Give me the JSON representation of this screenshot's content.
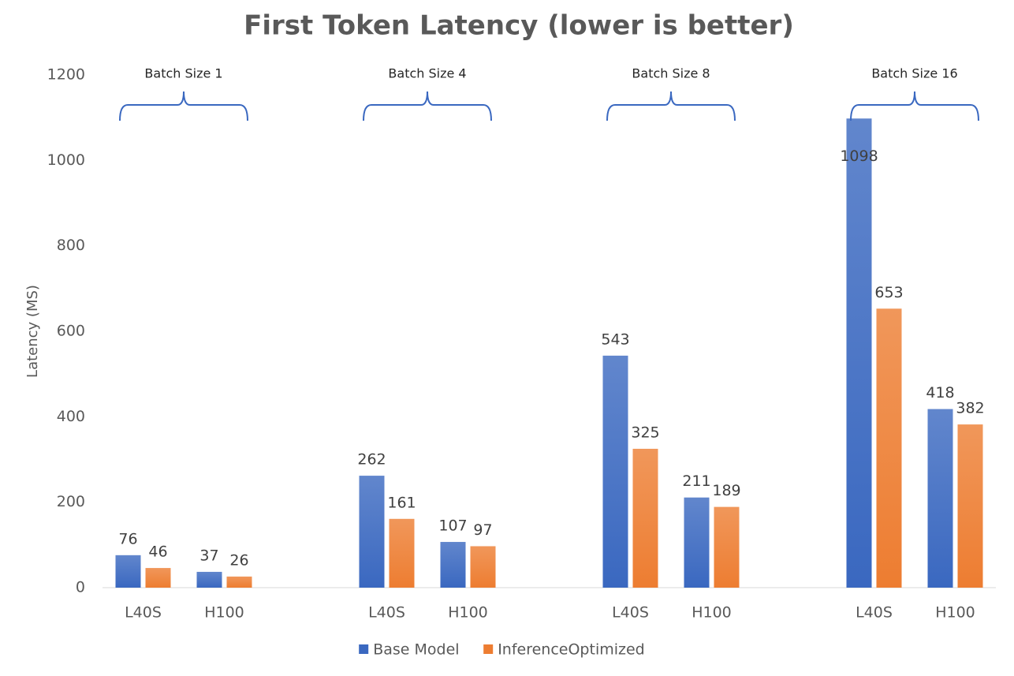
{
  "chart_data": {
    "type": "bar",
    "title": "First Token Latency (lower is better)",
    "y_label": "Latency (MS)",
    "categories": [
      "L40S",
      "H100",
      null,
      "L40S",
      "H100",
      null,
      "L40S",
      "H100",
      null,
      "L40S",
      "H100"
    ],
    "group_labels": [
      "Batch Size 1",
      "Batch Size 4",
      "Batch Size 8",
      "Batch Size 16"
    ],
    "series": [
      {
        "name": "Base Model",
        "color": "#3a68c0",
        "values": [
          76,
          37,
          null,
          262,
          107,
          null,
          543,
          211,
          null,
          1098,
          418
        ]
      },
      {
        "name": "InferenceOptimized",
        "color": "#ed7d31",
        "values": [
          46,
          26,
          null,
          161,
          97,
          null,
          325,
          189,
          null,
          653,
          382
        ]
      }
    ],
    "ylim": [
      0,
      1200
    ],
    "yticks": [
      0,
      200,
      400,
      600,
      800,
      1000,
      1200
    ],
    "grid": false,
    "legend": "bottom"
  }
}
